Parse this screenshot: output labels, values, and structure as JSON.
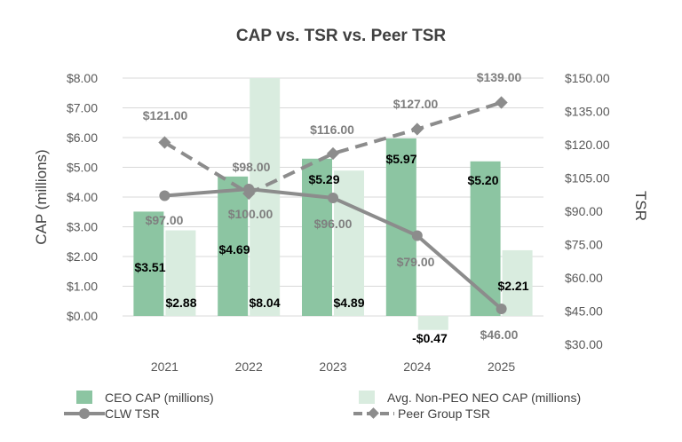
{
  "chart_data": {
    "type": "bar+line",
    "title": "CAP vs. TSR vs. Peer TSR",
    "categories": [
      "2021",
      "2022",
      "2023",
      "2024",
      "2025"
    ],
    "left_axis": {
      "label": "CAP (millions)",
      "range": [
        0,
        8
      ],
      "ticks": [
        "$0.00",
        "$1.00",
        "$2.00",
        "$3.00",
        "$4.00",
        "$5.00",
        "$6.00",
        "$7.00",
        "$8.00"
      ]
    },
    "right_axis": {
      "label": "TSR",
      "range": [
        30,
        150
      ],
      "ticks": [
        "$30.00",
        "$45.00",
        "$60.00",
        "$75.00",
        "$90.00",
        "$105.00",
        "$120.00",
        "$135.00",
        "$150.00"
      ]
    },
    "series": [
      {
        "name": "CEO CAP (millions)",
        "type": "bar",
        "axis": "left",
        "color": "#8cc5a2",
        "values": [
          3.51,
          4.69,
          5.29,
          5.97,
          5.2
        ],
        "labels": [
          "$3.51",
          "$4.69",
          "$5.29",
          "$5.97",
          "$5.20"
        ]
      },
      {
        "name": "Avg. Non-PEO NEO CAP (millions)",
        "type": "bar",
        "axis": "left",
        "color": "#d9ecdf",
        "values": [
          2.88,
          8.04,
          4.89,
          -0.47,
          2.21
        ],
        "labels": [
          "$2.88",
          "$8.04",
          "$4.89",
          "-$0.47",
          "$2.21"
        ]
      },
      {
        "name": "CLW TSR",
        "type": "line",
        "axis": "right",
        "color": "#8c8c8c",
        "values": [
          97.0,
          100.0,
          96.0,
          79.0,
          46.0
        ],
        "labels": [
          "$97.00",
          "$100.00",
          "$96.00",
          "$79.00",
          "$46.00"
        ]
      },
      {
        "name": "Peer Group TSR",
        "type": "line-dashed",
        "axis": "right",
        "color": "#8c8c8c",
        "values": [
          121.0,
          98.0,
          116.0,
          127.0,
          139.0
        ],
        "labels": [
          "$121.00",
          "$98.00",
          "$116.00",
          "$127.00",
          "$139.00"
        ]
      }
    ],
    "legend": {
      "position": "bottom",
      "items": [
        "CEO CAP (millions)",
        "Avg. Non-PEO NEO CAP (millions)",
        "CLW TSR",
        "Peer Group TSR"
      ]
    },
    "grid": true
  }
}
